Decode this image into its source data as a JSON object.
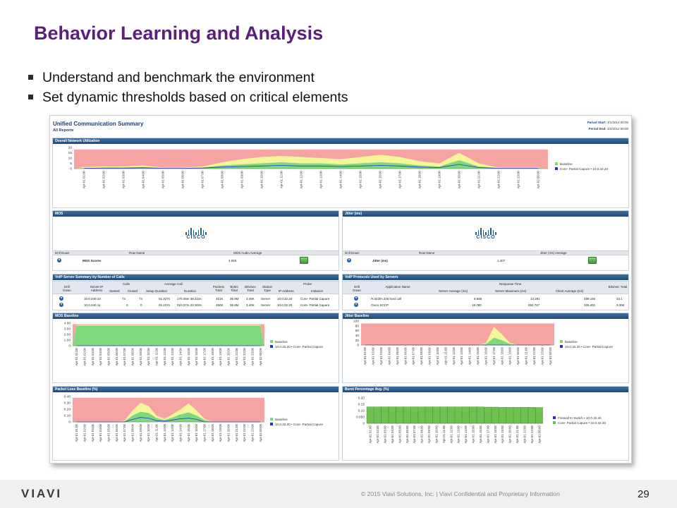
{
  "slide": {
    "title": "Behavior Learning and Analysis",
    "bullets": [
      "Understand and benchmark the environment",
      "Set dynamic thresholds based on critical elements"
    ],
    "copyright": "© 2015 Viavi Solutions, Inc. | Viavi Confidential and Proprietary Information",
    "page_number": "29",
    "logo_text": "VIAVI"
  },
  "report": {
    "title": "Unified Communication Summary",
    "subtitle": "All Reports",
    "period_start_label": "Period Start:",
    "period_start": "4/1/2012 00:00",
    "period_end_label": "Period End:",
    "period_end": "4/2/2012 00:00",
    "hours": [
      "Apr-01 01:00",
      "Apr-01 02:00",
      "Apr-01 03:00",
      "Apr-01 04:00",
      "Apr-01 05:00",
      "Apr-01 06:00",
      "Apr-01 07:00",
      "Apr-01 08:00",
      "Apr-01 09:00",
      "Apr-01 10:00",
      "Apr-01 11:00",
      "Apr-01 12:00",
      "Apr-01 13:00",
      "Apr-01 14:00",
      "Apr-01 15:00",
      "Apr-01 16:00",
      "Apr-01 17:00",
      "Apr-01 18:00",
      "Apr-01 19:00",
      "Apr-01 20:00",
      "Apr-01 21:00",
      "Apr-01 22:00",
      "Apr-01 23:00",
      "Apr-02 00:00"
    ],
    "colors": {
      "upper_band": "#f5a3a3",
      "mid_band": "#f5f59a",
      "baseline": "#7ed87e",
      "series": "#2233cc",
      "header": "#1f4a78",
      "title": "#5b1f7a"
    }
  },
  "chart_data": [
    {
      "id": "network",
      "type": "area",
      "title": "Overall Network Utilization",
      "yticks": [
        "20",
        "15",
        "10",
        "5",
        "0"
      ],
      "ylim": [
        0,
        20
      ],
      "upper": [
        18,
        18,
        18,
        18,
        18,
        18,
        18,
        18,
        18,
        18,
        18,
        18,
        18,
        18,
        18,
        18,
        18,
        18,
        18,
        18,
        18,
        18,
        18,
        18
      ],
      "mid": [
        1.5,
        2,
        2,
        3,
        1,
        1,
        2,
        6,
        9,
        11,
        12,
        11,
        10,
        9,
        11,
        13,
        11,
        7,
        5,
        15,
        5,
        1,
        1,
        1
      ],
      "base": [
        0.5,
        1,
        1,
        1.5,
        0.5,
        0.5,
        1,
        3,
        4,
        5,
        6,
        5,
        5,
        4,
        5,
        6,
        5,
        3,
        2,
        8,
        2,
        0.5,
        0.5,
        0.5
      ],
      "line": [
        0.3,
        0.5,
        0.5,
        0.8,
        0.3,
        0.3,
        0.6,
        1.5,
        2,
        2.5,
        3,
        2.5,
        2.5,
        2,
        2.5,
        3,
        2.5,
        1.5,
        1,
        4,
        1,
        0.3,
        0.3,
        0.3
      ],
      "legend": [
        "Baseline",
        "Core- Partial Capure • 10.0.32.20"
      ]
    },
    {
      "id": "mos",
      "type": "area",
      "title": "MOS Baseline",
      "yticks": [
        "4.00",
        "3.00",
        "2.00",
        "1.00",
        "0"
      ],
      "ylim": [
        0,
        4.5
      ],
      "upper": [
        4.3,
        4.3,
        4.3,
        4.3,
        4.3,
        4.3,
        4.3,
        4.3,
        4.3,
        4.3,
        4.3,
        4.3,
        4.3,
        4.3,
        4.3,
        4.3,
        4.3,
        4.3,
        4.3,
        4.3,
        4.3,
        4.3,
        4.3,
        4.3
      ],
      "mid": [
        4.15,
        4.15,
        4.15,
        4.15,
        4.15,
        4.15,
        4.15,
        4.15,
        4.15,
        4.15,
        4.15,
        4.15,
        4.15,
        4.15,
        4.15,
        4.15,
        4.15,
        4.15,
        4.15,
        4.15,
        4.15,
        4.15,
        4.15,
        4.15
      ],
      "base": [
        4.0,
        4.0,
        4.0,
        4.0,
        4.0,
        4.0,
        4.0,
        4.0,
        4.0,
        4.0,
        4.0,
        4.0,
        4.0,
        4.0,
        4.0,
        4.0,
        4.0,
        4.0,
        4.0,
        4.0,
        4.0,
        4.0,
        4.0,
        4.0
      ],
      "line": [
        0,
        0,
        0,
        0,
        0,
        0,
        0,
        0,
        0,
        0,
        0,
        0,
        0,
        0,
        0,
        0,
        0,
        0,
        0,
        0,
        0,
        0,
        0,
        0
      ],
      "legend": [
        "Baseline",
        "10.0.32.20 • Core- Partial Capure"
      ]
    },
    {
      "id": "jitter",
      "type": "area",
      "title": "Jitter Baseline",
      "yticks": [
        "100",
        "80",
        "60",
        "40",
        "20",
        "0"
      ],
      "ylim": [
        0,
        100
      ],
      "upper": [
        90,
        90,
        90,
        90,
        90,
        90,
        90,
        90,
        90,
        90,
        90,
        90,
        90,
        90,
        90,
        90,
        90,
        90,
        90,
        90,
        90,
        90,
        90,
        90
      ],
      "mid": [
        0,
        0,
        0,
        0,
        0,
        0,
        0,
        0,
        0,
        0,
        0,
        0,
        0,
        0,
        0,
        8,
        75,
        45,
        8,
        0,
        0,
        0,
        0,
        0
      ],
      "base": [
        0,
        0,
        0,
        0,
        0,
        0,
        0,
        0,
        0,
        0,
        0,
        0,
        0,
        0,
        0,
        4,
        30,
        20,
        4,
        0,
        0,
        0,
        0,
        0
      ],
      "line": [
        0,
        0,
        0,
        0,
        0,
        0,
        0,
        0,
        0,
        0,
        0,
        0,
        0,
        0,
        0,
        0,
        0,
        0,
        0,
        0,
        0,
        0,
        0,
        0
      ],
      "legend": [
        "Baseline",
        "10.0.32.20 • Core- Partial Capure"
      ]
    },
    {
      "id": "packetloss",
      "type": "area",
      "title": "Packet Loss Baseline (%)",
      "yticks": [
        "0.40",
        "0.30",
        "0.20",
        "0.10",
        "0"
      ],
      "ylim": [
        0,
        0.4
      ],
      "upper": [
        0.38,
        0.38,
        0.38,
        0.38,
        0.38,
        0.38,
        0.38,
        0.38,
        0.38,
        0.38,
        0.38,
        0.38,
        0.38,
        0.38,
        0.38,
        0.38,
        0.38,
        0.38,
        0.38,
        0.38,
        0.38,
        0.38,
        0.38,
        0.38
      ],
      "mid": [
        0,
        0,
        0,
        0,
        0,
        0,
        0.02,
        0.18,
        0.3,
        0.25,
        0.1,
        0.05,
        0.12,
        0.2,
        0.29,
        0.18,
        0.05,
        0,
        0,
        0,
        0,
        0,
        0,
        0
      ],
      "base": [
        0,
        0,
        0,
        0,
        0,
        0,
        0.01,
        0.1,
        0.16,
        0.14,
        0.06,
        0.03,
        0.07,
        0.12,
        0.15,
        0.1,
        0.03,
        0,
        0,
        0,
        0,
        0,
        0,
        0
      ],
      "line": [
        0,
        0,
        0,
        0,
        0,
        0,
        0,
        0.04,
        0.07,
        0.06,
        0.02,
        0.01,
        0.03,
        0.05,
        0.06,
        0.04,
        0,
        0,
        0,
        0,
        0,
        0,
        0,
        0
      ],
      "legend": [
        "Baseline",
        "10.0.32.20 • Core- Partial Capure"
      ]
    },
    {
      "id": "burst",
      "type": "bar",
      "title": "Burst Percentage Avg. (%)",
      "yticks": [
        "0.20",
        "0.15",
        "0.10",
        "0.050",
        "0"
      ],
      "ylim": [
        0,
        0.2
      ],
      "values": [
        0.13,
        0.13,
        0.13,
        0.13,
        0.13,
        0.13,
        0.13,
        0.13,
        0.13,
        0.13,
        0.13,
        0.13,
        0.13,
        0.13,
        0.13,
        0.13,
        0.128,
        0.128,
        0.126,
        0.126,
        0.126,
        0.126,
        0.126,
        0.125
      ],
      "legend": [
        "Firewall to Switch • 10.0.32.20",
        "Core- Partial Capure • 10.0.32.20"
      ]
    }
  ],
  "mos_panel": {
    "title": "MOS",
    "columns": [
      "Drill Down",
      "Row Name",
      "MOS Audio Average"
    ],
    "row_name": "MOS Scores",
    "value": "4.060"
  },
  "jitter_panel": {
    "title": "Jitter (ms)",
    "columns": [
      "Drill Down",
      "Row Name",
      "Jitter (ms) Average"
    ],
    "row_name": "Jitter (ms)",
    "value": "1.307"
  },
  "voip_server": {
    "title": "VoIP Server Summary by Number of Calls",
    "group_headers": [
      "Calls",
      "Average Call",
      "Probe"
    ],
    "columns": [
      "Drill Down",
      "Server IP Address",
      "Started",
      "Closed",
      "Setup Duration",
      "Duration",
      "Packets Total",
      "Bytes Total",
      "Bits/sec Total",
      "Station Type",
      "IP Address",
      "Instance"
    ],
    "rows": [
      [
        "10.0.240.10",
        "74",
        "74",
        "01.227s",
        "17h:46m 38.322s",
        "451K",
        "36.9M",
        "3.49K",
        "Server",
        "10.0.32.20",
        "Core- Partial Capure"
      ],
      [
        "10.0.240.11",
        "0",
        "0",
        "01.227s",
        "01h:27m 22.302s",
        "450K",
        "36.8M",
        "3.40K",
        "Server",
        "10.0.32.20",
        "Core- Partial Capure"
      ]
    ]
  },
  "voip_protocols": {
    "title": "VoIP Protocols Used by Servers",
    "group_header": "Response Time",
    "columns": [
      "Drill Down",
      "Application Name",
      "Server Average (ms)",
      "Server Maximum (ms)",
      "Client Average (ms)",
      "Bits/sec Total"
    ],
    "rows": [
      [
        "H.323/H.225 host call",
        "9.666",
        "13.291",
        "499.194",
        "33.1"
      ],
      [
        "Cisco SCCP",
        "18.780",
        "852.767",
        "325.491",
        "3.39K"
      ]
    ]
  },
  "cisco_word": "CISCO"
}
